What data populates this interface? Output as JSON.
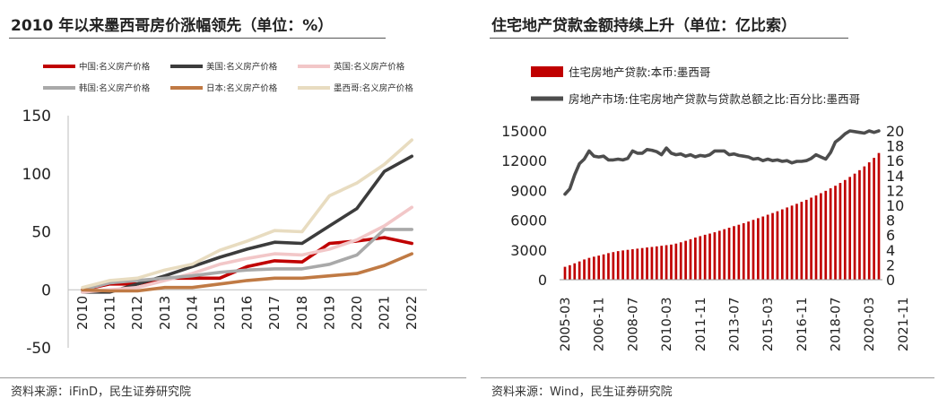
{
  "chart_data": [
    {
      "type": "line",
      "title": "2010 年以来墨西哥房价涨幅领先（单位：%）",
      "source": "资料来源：iFinD，民生证券研究院",
      "xlabel": "",
      "ylabel": "",
      "categories": [
        "2010",
        "2011",
        "2012",
        "2013",
        "2014",
        "2015",
        "2016",
        "2017",
        "2018",
        "2019",
        "2020",
        "2021",
        "2022"
      ],
      "ylim": [
        -50,
        150
      ],
      "yticks": [
        "150",
        "100",
        "50",
        "0",
        "-50"
      ],
      "legend_position": "top",
      "series": [
        {
          "name": "中国:名义房产价格",
          "color": "#c00000",
          "values": [
            0,
            5,
            5,
            10,
            10,
            10,
            20,
            25,
            24,
            40,
            42,
            45,
            40
          ]
        },
        {
          "name": "美国:名义房产价格",
          "color": "#3c3c3c",
          "values": [
            -2,
            -2,
            5,
            12,
            20,
            28,
            35,
            41,
            40,
            55,
            70,
            102,
            115
          ]
        },
        {
          "name": "英国:名义房产价格",
          "color": "#f2c7c8",
          "values": [
            -2,
            0,
            2,
            8,
            14,
            22,
            27,
            31,
            30,
            35,
            43,
            55,
            71
          ]
        },
        {
          "name": "韩国:名义房产价格",
          "color": "#a9a9a9",
          "values": [
            0,
            6,
            8,
            10,
            12,
            15,
            17,
            18,
            18,
            22,
            30,
            52,
            52
          ]
        },
        {
          "name": "日本:名义房产价格",
          "color": "#c07a44",
          "values": [
            0,
            -1,
            -1,
            2,
            2,
            5,
            8,
            10,
            10,
            12,
            14,
            21,
            31
          ]
        },
        {
          "name": "墨西哥:名义房产价格",
          "color": "#e8dcc0",
          "values": [
            2,
            8,
            10,
            17,
            22,
            34,
            42,
            51,
            50,
            81,
            92,
            108,
            129
          ]
        }
      ]
    },
    {
      "type": "bar+line",
      "title": "住宅地产贷款金额持续上升（单位：亿比索）",
      "source": "资料来源：Wind，民生证券研究院",
      "x_tick_labels": [
        "2005-03",
        "2006-11",
        "2008-07",
        "2010-03",
        "2011-11",
        "2013-07",
        "2015-03",
        "2016-11",
        "2018-07",
        "2020-03",
        "2021-11"
      ],
      "left_axis": {
        "ylim": [
          0,
          15000
        ],
        "ticks": [
          "15000",
          "12000",
          "9000",
          "6000",
          "3000",
          "0"
        ]
      },
      "right_axis": {
        "ylim": [
          0,
          20
        ],
        "ticks": [
          "20",
          "18",
          "16",
          "14",
          "12",
          "10",
          "8",
          "6",
          "4",
          "2",
          "0"
        ]
      },
      "series": [
        {
          "name": "住宅房地产贷款:本币:墨西哥",
          "type": "bar",
          "axis": "left",
          "color": "#c00000",
          "x_start": "2005-03",
          "frequency": "quarterly",
          "values": [
            1300,
            1460,
            1650,
            1840,
            2040,
            2200,
            2320,
            2430,
            2550,
            2680,
            2780,
            2880,
            2950,
            3010,
            3070,
            3130,
            3190,
            3250,
            3300,
            3360,
            3420,
            3480,
            3540,
            3640,
            3770,
            3920,
            4080,
            4250,
            4390,
            4530,
            4650,
            4780,
            4930,
            5090,
            5240,
            5400,
            5540,
            5690,
            5860,
            6030,
            6200,
            6370,
            6550,
            6720,
            6900,
            7090,
            7280,
            7470,
            7650,
            7850,
            8050,
            8270,
            8490,
            8720,
            8960,
            9210,
            9470,
            9750,
            10050,
            10360,
            10690,
            11040,
            11420,
            11830,
            12280,
            12770
          ]
        },
        {
          "name": "房地产市场:住宅房地产贷款与贷款总额之比:百分比:墨西哥",
          "type": "line",
          "axis": "right",
          "color": "#4d4d4d",
          "x_start": "2005-03",
          "frequency": "quarterly",
          "values": [
            11.5,
            12.2,
            14.1,
            15.6,
            16.2,
            17.3,
            16.6,
            16.5,
            16.6,
            16.1,
            16.1,
            16.2,
            16.1,
            16.3,
            17.3,
            17.0,
            17.0,
            17.5,
            17.4,
            17.2,
            16.8,
            17.7,
            17.0,
            16.8,
            16.9,
            16.6,
            16.8,
            16.5,
            16.7,
            16.6,
            16.8,
            17.3,
            17.3,
            17.3,
            16.8,
            16.9,
            16.7,
            16.6,
            16.5,
            16.2,
            16.3,
            16.0,
            16.2,
            16.0,
            16.1,
            15.9,
            16.0,
            15.7,
            15.9,
            15.9,
            16.0,
            16.3,
            16.8,
            16.5,
            16.2,
            17.1,
            18.5,
            19.0,
            19.6,
            20.0,
            19.9,
            19.8,
            19.7,
            20.0,
            19.8,
            20.0
          ]
        }
      ]
    }
  ]
}
